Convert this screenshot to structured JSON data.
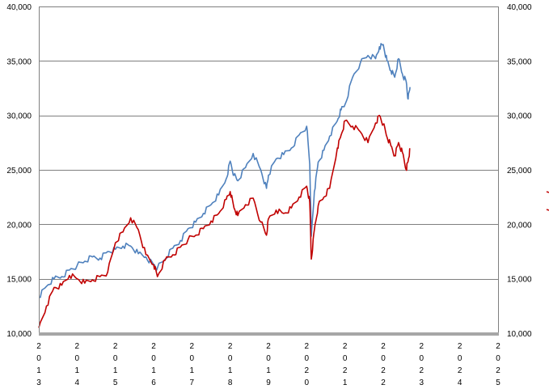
{
  "chart_data": {
    "type": "line",
    "title": "",
    "xlabel": "",
    "ylabel": "",
    "ylim": [
      10000,
      40000
    ],
    "y_ticks": [
      10000,
      15000,
      20000,
      25000,
      30000,
      35000,
      40000
    ],
    "y_tick_labels": [
      "10,000",
      "15,000",
      "20,000",
      "25,000",
      "30,000",
      "35,000",
      "40,000"
    ],
    "y2_tick_labels": [
      "10,000",
      "15,000",
      "20,000",
      "25,000",
      "30,000",
      "35,000",
      "40,000"
    ],
    "xlim": [
      2013,
      2025
    ],
    "x_ticks": [
      2013,
      2014,
      2015,
      2016,
      2017,
      2018,
      2019,
      2020,
      2021,
      2022,
      2023,
      2024,
      2025
    ],
    "x_tick_labels": [
      "2013",
      "2014",
      "2015",
      "2016",
      "2017",
      "2018",
      "2019",
      "2020",
      "2021",
      "2022",
      "2023",
      "2024",
      "2025"
    ],
    "grid": true,
    "legend": "right (clipped, unreadable)",
    "series": [
      {
        "color": "#4f81bd",
        "x": [
          2013.0,
          2013.2,
          2013.4,
          2013.6,
          2013.8,
          2014.0,
          2014.2,
          2014.4,
          2014.6,
          2014.8,
          2015.0,
          2015.2,
          2015.4,
          2015.6,
          2015.8,
          2016.0,
          2016.1,
          2016.3,
          2016.5,
          2016.7,
          2016.9,
          2017.1,
          2017.3,
          2017.5,
          2017.7,
          2017.9,
          2018.0,
          2018.1,
          2018.2,
          2018.4,
          2018.6,
          2018.8,
          2018.95,
          2019.0,
          2019.2,
          2019.4,
          2019.6,
          2019.8,
          2020.0,
          2020.08,
          2020.12,
          2020.2,
          2020.3,
          2020.45,
          2020.6,
          2020.8,
          2020.9,
          2021.0,
          2021.2,
          2021.4,
          2021.6,
          2021.8,
          2021.9,
          2022.0,
          2022.1,
          2022.2,
          2022.3,
          2022.4,
          2022.5,
          2022.6,
          2022.65,
          2022.7
        ],
        "values": [
          13300,
          14300,
          15000,
          15200,
          15800,
          16200,
          16600,
          17000,
          16900,
          17500,
          17700,
          18000,
          18000,
          17300,
          17000,
          16300,
          16000,
          16800,
          17800,
          18500,
          19600,
          20200,
          21000,
          21800,
          22700,
          24200,
          25800,
          24500,
          24000,
          25200,
          26500,
          25000,
          23300,
          24500,
          26000,
          26400,
          27000,
          28200,
          29000,
          25500,
          18900,
          23000,
          25700,
          26800,
          28100,
          29500,
          30500,
          31000,
          33500,
          34800,
          35500,
          35200,
          36300,
          36500,
          35000,
          34100,
          33500,
          35200,
          33800,
          33100,
          31500,
          32600
        ],
        "data_label": "",
        "name": ""
      },
      {
        "color": "#c00000",
        "x": [
          2013.0,
          2013.2,
          2013.4,
          2013.6,
          2013.8,
          2014.0,
          2014.2,
          2014.4,
          2014.6,
          2014.8,
          2015.0,
          2015.2,
          2015.4,
          2015.6,
          2015.8,
          2016.0,
          2016.1,
          2016.3,
          2016.5,
          2016.7,
          2016.9,
          2017.1,
          2017.3,
          2017.5,
          2017.7,
          2017.9,
          2018.0,
          2018.1,
          2018.2,
          2018.4,
          2018.6,
          2018.8,
          2018.95,
          2019.0,
          2019.2,
          2019.4,
          2019.6,
          2019.8,
          2020.0,
          2020.08,
          2020.12,
          2020.2,
          2020.3,
          2020.45,
          2020.6,
          2020.8,
          2020.9,
          2021.0,
          2021.2,
          2021.4,
          2021.6,
          2021.8,
          2021.9,
          2022.0,
          2022.1,
          2022.2,
          2022.3,
          2022.4,
          2022.5,
          2022.6,
          2022.65,
          2022.7
        ],
        "values": [
          10500,
          12500,
          14200,
          14400,
          15300,
          15000,
          14600,
          14900,
          15200,
          15600,
          18300,
          19300,
          20600,
          19500,
          17200,
          16300,
          15200,
          16700,
          17200,
          17900,
          18600,
          19000,
          19600,
          20300,
          21000,
          22300,
          23000,
          21500,
          20800,
          21800,
          22400,
          20200,
          19000,
          20500,
          21300,
          21000,
          21500,
          22500,
          23500,
          22000,
          16800,
          19500,
          21700,
          22500,
          23300,
          27000,
          28200,
          29500,
          29000,
          28500,
          27500,
          29300,
          30000,
          29200,
          28000,
          27200,
          26300,
          27500,
          26600,
          25000,
          25800,
          26900
        ],
        "data_label": "",
        "name": ""
      }
    ]
  }
}
